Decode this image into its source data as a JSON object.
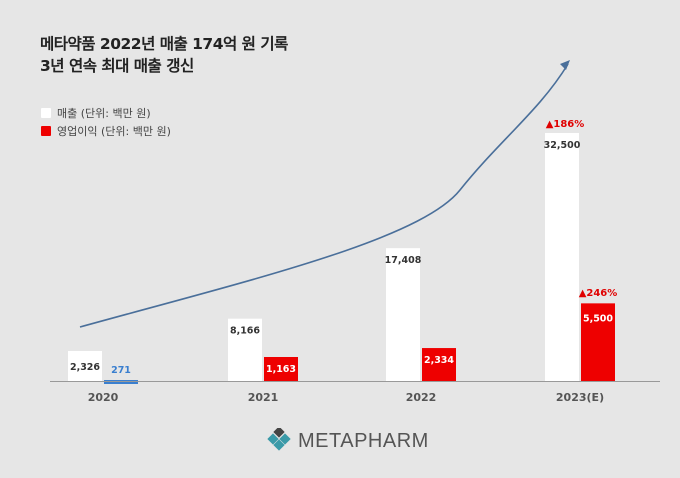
{
  "title": {
    "line1": "메타약품 2022년 매출 174억 원 기록",
    "line2": "3년 연속 최대 매출 갱신"
  },
  "legend": [
    {
      "label": "매출 (단위: 백만 원)",
      "color": "#ffffff"
    },
    {
      "label": "영업이익 (단위: 백만 원)",
      "color": "#ee0000"
    }
  ],
  "chart_data": {
    "type": "bar",
    "categories": [
      "2020",
      "2021",
      "2022",
      "2023(E)"
    ],
    "series": [
      {
        "name": "매출 (단위: 백만 원)",
        "values": [
          2326,
          8166,
          17408,
          32500
        ],
        "labels": [
          "2,326",
          "8,166",
          "17,408",
          "32,500"
        ],
        "color": "#ffffff"
      },
      {
        "name": "영업이익 (단위: 백만 원)",
        "values": [
          271,
          1163,
          2334,
          5500
        ],
        "labels": [
          "271",
          "1,163",
          "2,334",
          "5,500"
        ],
        "color": "#ee0000",
        "first_bar_color": "#3a7fcf"
      }
    ],
    "annotations": [
      {
        "category": "2023(E)",
        "series": "매출",
        "text": "▲186%"
      },
      {
        "category": "2023(E)",
        "series": "영업이익",
        "text": "▲246%"
      }
    ],
    "trend_arrow": true,
    "ylim": [
      0,
      32500
    ],
    "grid": false
  },
  "logo": {
    "text": "METAPHARM"
  }
}
